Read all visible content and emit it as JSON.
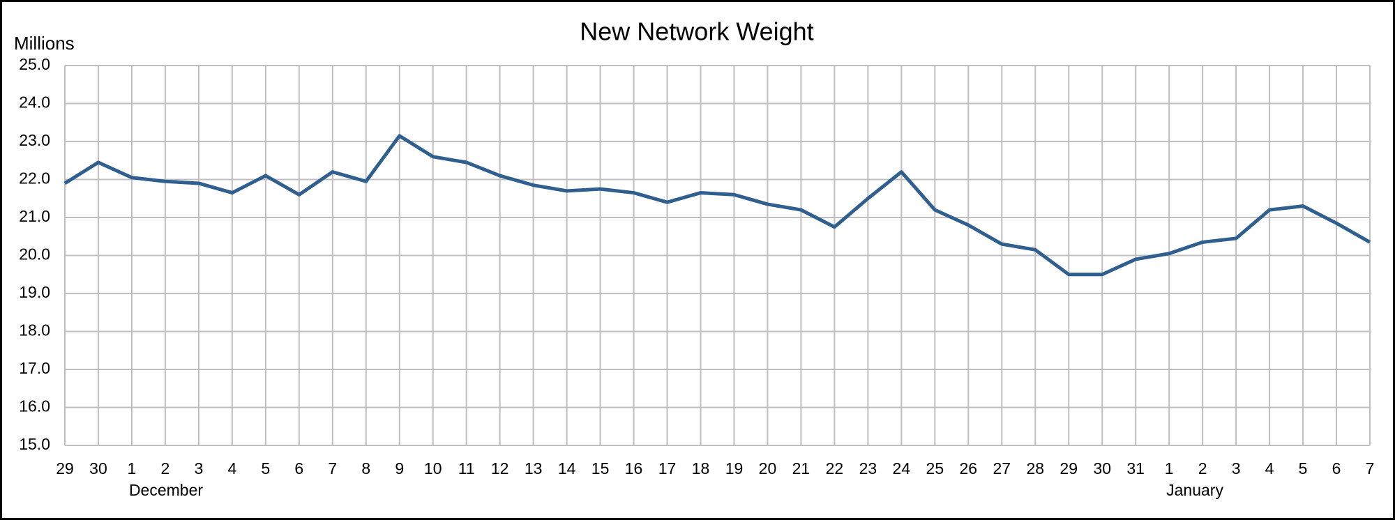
{
  "chart_data": {
    "type": "line",
    "title": "New Network Weight",
    "y_label": "Millions",
    "categories": [
      "29",
      "30",
      "1",
      "2",
      "3",
      "4",
      "5",
      "6",
      "7",
      "8",
      "9",
      "10",
      "11",
      "12",
      "13",
      "14",
      "15",
      "16",
      "17",
      "18",
      "19",
      "20",
      "21",
      "22",
      "23",
      "24",
      "25",
      "26",
      "27",
      "28",
      "29",
      "30",
      "31",
      "1",
      "2",
      "3",
      "4",
      "5",
      "6",
      "7"
    ],
    "x_groups": [
      {
        "label": "December",
        "start": 2
      },
      {
        "label": "January",
        "start": 33
      }
    ],
    "series": [
      {
        "name": "New Network Weight",
        "color": "#2f5f8f",
        "values": [
          21.9,
          22.45,
          22.05,
          21.95,
          21.9,
          21.65,
          22.1,
          21.6,
          22.2,
          21.95,
          23.15,
          22.6,
          22.45,
          22.1,
          21.85,
          21.7,
          21.75,
          21.65,
          21.4,
          21.65,
          21.6,
          21.35,
          21.2,
          20.75,
          21.5,
          22.2,
          21.2,
          20.8,
          20.3,
          20.15,
          19.5,
          19.5,
          19.9,
          20.05,
          20.35,
          20.45,
          21.2,
          21.3,
          20.85,
          20.35
        ]
      }
    ],
    "ylim": [
      15,
      25
    ],
    "yticks": [
      {
        "value": 15,
        "label": "15.0"
      },
      {
        "value": 16,
        "label": "16.0"
      },
      {
        "value": 17,
        "label": "17.0"
      },
      {
        "value": 18,
        "label": "18.0"
      },
      {
        "value": 19,
        "label": "19.0"
      },
      {
        "value": 20,
        "label": "20.0"
      },
      {
        "value": 21,
        "label": "21.0"
      },
      {
        "value": 22,
        "label": "22.0"
      },
      {
        "value": 23,
        "label": "23.0"
      },
      {
        "value": 24,
        "label": "24.0"
      },
      {
        "value": 25,
        "label": "25.0"
      }
    ],
    "grid": true
  }
}
